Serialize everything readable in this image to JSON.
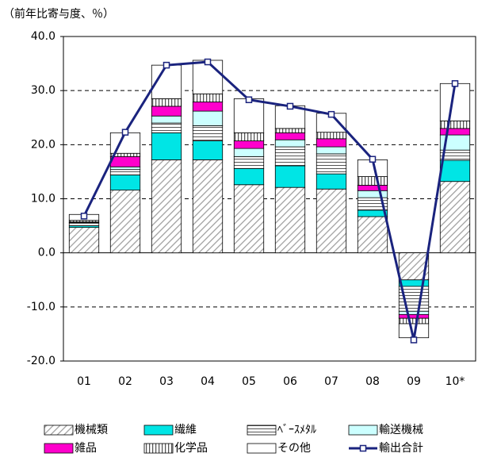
{
  "chart_data": {
    "type": "bar",
    "stacked": true,
    "title": "（前年比寄与度、％）",
    "categories": [
      "01",
      "02",
      "03",
      "04",
      "05",
      "06",
      "07",
      "08",
      "09",
      "10*"
    ],
    "series": [
      {
        "name": "機械類",
        "color": "#9e9e9e",
        "pattern": "diagonal",
        "values": [
          4.7,
          11.6,
          17.2,
          17.2,
          12.6,
          12.1,
          11.8,
          6.7,
          -5.0,
          13.2
        ]
      },
      {
        "name": "繊維",
        "color": "#00e5e5",
        "pattern": "solid",
        "values": [
          0.3,
          2.8,
          5.0,
          3.5,
          3.0,
          4.0,
          2.8,
          1.2,
          -1.2,
          3.9
        ]
      },
      {
        "name": "ﾍﾞｰｽﾒﾀﾙ",
        "color": "#555555",
        "pattern": "horizontal",
        "values": [
          0.5,
          1.0,
          1.8,
          2.8,
          2.2,
          3.5,
          3.7,
          2.3,
          -4.6,
          1.9
        ]
      },
      {
        "name": "輸送機械",
        "color": "#ccffff",
        "pattern": "solid",
        "values": [
          0.1,
          0.5,
          1.3,
          2.7,
          1.5,
          1.3,
          1.3,
          1.3,
          -0.6,
          2.8
        ]
      },
      {
        "name": "雑品",
        "color": "#ff00cc",
        "pattern": "solid",
        "values": [
          0.1,
          1.9,
          1.8,
          1.7,
          1.4,
          1.3,
          1.5,
          1.0,
          -0.7,
          1.2
        ]
      },
      {
        "name": "化学品",
        "color": "#555555",
        "pattern": "vertical",
        "values": [
          0.3,
          0.6,
          1.4,
          1.5,
          1.5,
          0.8,
          1.2,
          1.6,
          -1.0,
          1.4
        ]
      },
      {
        "name": "その他",
        "color": "#ffffff",
        "pattern": "solid",
        "values": [
          1.1,
          3.8,
          6.2,
          6.2,
          6.3,
          4.2,
          3.5,
          3.1,
          -2.6,
          6.9
        ]
      },
      {
        "name": "輸出合計",
        "type": "line",
        "color": "#1a237e",
        "values": [
          6.8,
          22.3,
          34.7,
          35.3,
          28.3,
          27.1,
          25.6,
          17.3,
          -16.1,
          31.3
        ]
      }
    ],
    "ylim": [
      -20,
      40
    ],
    "yticks": [
      {
        "value": -20,
        "label": "-20.0"
      },
      {
        "value": -10,
        "label": "-10.0"
      },
      {
        "value": 0,
        "label": "0.0"
      },
      {
        "value": 10,
        "label": "10.0"
      },
      {
        "value": 20,
        "label": "20.0"
      },
      {
        "value": 30,
        "label": "30.0"
      },
      {
        "value": 40,
        "label": "40.0"
      }
    ],
    "grid": true
  }
}
